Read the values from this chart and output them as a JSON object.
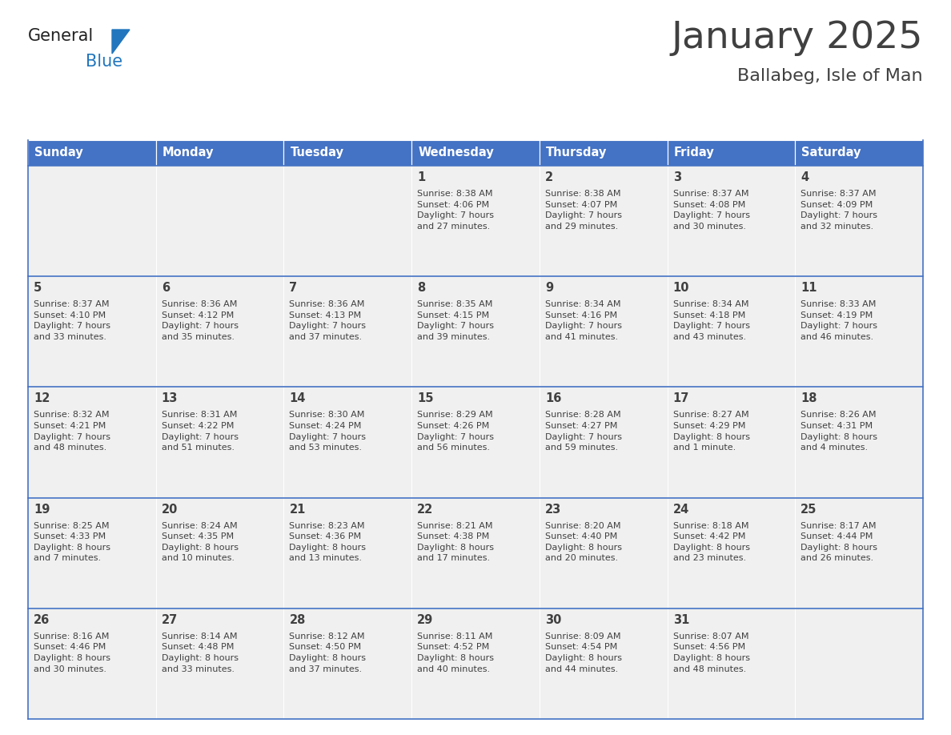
{
  "title": "January 2025",
  "subtitle": "Ballabeg, Isle of Man",
  "header_color": "#4472C4",
  "header_text_color": "#FFFFFF",
  "cell_bg_color": "#F0F0F0",
  "border_color": "#4472C4",
  "text_color": "#404040",
  "days_of_week": [
    "Sunday",
    "Monday",
    "Tuesday",
    "Wednesday",
    "Thursday",
    "Friday",
    "Saturday"
  ],
  "weeks": [
    [
      {
        "day": "",
        "info": ""
      },
      {
        "day": "",
        "info": ""
      },
      {
        "day": "",
        "info": ""
      },
      {
        "day": "1",
        "info": "Sunrise: 8:38 AM\nSunset: 4:06 PM\nDaylight: 7 hours\nand 27 minutes."
      },
      {
        "day": "2",
        "info": "Sunrise: 8:38 AM\nSunset: 4:07 PM\nDaylight: 7 hours\nand 29 minutes."
      },
      {
        "day": "3",
        "info": "Sunrise: 8:37 AM\nSunset: 4:08 PM\nDaylight: 7 hours\nand 30 minutes."
      },
      {
        "day": "4",
        "info": "Sunrise: 8:37 AM\nSunset: 4:09 PM\nDaylight: 7 hours\nand 32 minutes."
      }
    ],
    [
      {
        "day": "5",
        "info": "Sunrise: 8:37 AM\nSunset: 4:10 PM\nDaylight: 7 hours\nand 33 minutes."
      },
      {
        "day": "6",
        "info": "Sunrise: 8:36 AM\nSunset: 4:12 PM\nDaylight: 7 hours\nand 35 minutes."
      },
      {
        "day": "7",
        "info": "Sunrise: 8:36 AM\nSunset: 4:13 PM\nDaylight: 7 hours\nand 37 minutes."
      },
      {
        "day": "8",
        "info": "Sunrise: 8:35 AM\nSunset: 4:15 PM\nDaylight: 7 hours\nand 39 minutes."
      },
      {
        "day": "9",
        "info": "Sunrise: 8:34 AM\nSunset: 4:16 PM\nDaylight: 7 hours\nand 41 minutes."
      },
      {
        "day": "10",
        "info": "Sunrise: 8:34 AM\nSunset: 4:18 PM\nDaylight: 7 hours\nand 43 minutes."
      },
      {
        "day": "11",
        "info": "Sunrise: 8:33 AM\nSunset: 4:19 PM\nDaylight: 7 hours\nand 46 minutes."
      }
    ],
    [
      {
        "day": "12",
        "info": "Sunrise: 8:32 AM\nSunset: 4:21 PM\nDaylight: 7 hours\nand 48 minutes."
      },
      {
        "day": "13",
        "info": "Sunrise: 8:31 AM\nSunset: 4:22 PM\nDaylight: 7 hours\nand 51 minutes."
      },
      {
        "day": "14",
        "info": "Sunrise: 8:30 AM\nSunset: 4:24 PM\nDaylight: 7 hours\nand 53 minutes."
      },
      {
        "day": "15",
        "info": "Sunrise: 8:29 AM\nSunset: 4:26 PM\nDaylight: 7 hours\nand 56 minutes."
      },
      {
        "day": "16",
        "info": "Sunrise: 8:28 AM\nSunset: 4:27 PM\nDaylight: 7 hours\nand 59 minutes."
      },
      {
        "day": "17",
        "info": "Sunrise: 8:27 AM\nSunset: 4:29 PM\nDaylight: 8 hours\nand 1 minute."
      },
      {
        "day": "18",
        "info": "Sunrise: 8:26 AM\nSunset: 4:31 PM\nDaylight: 8 hours\nand 4 minutes."
      }
    ],
    [
      {
        "day": "19",
        "info": "Sunrise: 8:25 AM\nSunset: 4:33 PM\nDaylight: 8 hours\nand 7 minutes."
      },
      {
        "day": "20",
        "info": "Sunrise: 8:24 AM\nSunset: 4:35 PM\nDaylight: 8 hours\nand 10 minutes."
      },
      {
        "day": "21",
        "info": "Sunrise: 8:23 AM\nSunset: 4:36 PM\nDaylight: 8 hours\nand 13 minutes."
      },
      {
        "day": "22",
        "info": "Sunrise: 8:21 AM\nSunset: 4:38 PM\nDaylight: 8 hours\nand 17 minutes."
      },
      {
        "day": "23",
        "info": "Sunrise: 8:20 AM\nSunset: 4:40 PM\nDaylight: 8 hours\nand 20 minutes."
      },
      {
        "day": "24",
        "info": "Sunrise: 8:18 AM\nSunset: 4:42 PM\nDaylight: 8 hours\nand 23 minutes."
      },
      {
        "day": "25",
        "info": "Sunrise: 8:17 AM\nSunset: 4:44 PM\nDaylight: 8 hours\nand 26 minutes."
      }
    ],
    [
      {
        "day": "26",
        "info": "Sunrise: 8:16 AM\nSunset: 4:46 PM\nDaylight: 8 hours\nand 30 minutes."
      },
      {
        "day": "27",
        "info": "Sunrise: 8:14 AM\nSunset: 4:48 PM\nDaylight: 8 hours\nand 33 minutes."
      },
      {
        "day": "28",
        "info": "Sunrise: 8:12 AM\nSunset: 4:50 PM\nDaylight: 8 hours\nand 37 minutes."
      },
      {
        "day": "29",
        "info": "Sunrise: 8:11 AM\nSunset: 4:52 PM\nDaylight: 8 hours\nand 40 minutes."
      },
      {
        "day": "30",
        "info": "Sunrise: 8:09 AM\nSunset: 4:54 PM\nDaylight: 8 hours\nand 44 minutes."
      },
      {
        "day": "31",
        "info": "Sunrise: 8:07 AM\nSunset: 4:56 PM\nDaylight: 8 hours\nand 48 minutes."
      },
      {
        "day": "",
        "info": ""
      }
    ]
  ],
  "logo_general_color": "#222222",
  "logo_blue_color": "#2176BD",
  "logo_triangle_color": "#2176BD",
  "fig_width": 11.88,
  "fig_height": 9.18,
  "dpi": 100
}
